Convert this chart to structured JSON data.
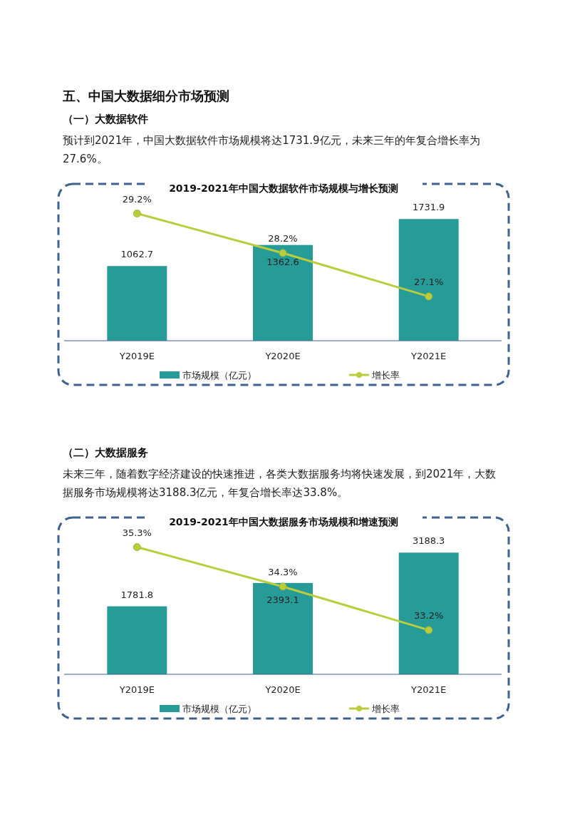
{
  "chart_data": [
    {
      "type": "bar",
      "title": "2019-2021年中国大数据软件市场规模与增长预测",
      "annotations": [
        "五、中国大数据细分市场预测",
        "（一）大数据软件",
        "预计到2021年，中国大数据软件市场规模将达1731.9亿元，未来三年的年复合增长率为27.6%。"
      ],
      "categories": [
        "Y2019E",
        "Y2020E",
        "Y2021E"
      ],
      "legend": "bottom",
      "series": [
        {
          "name": "市场规模（亿元）",
          "type": "bar",
          "color": "#279b98",
          "values": [
            1062.7,
            1362.6,
            1731.9
          ],
          "value_labels": [
            "1062.7",
            "1362.6",
            "1731.9"
          ]
        },
        {
          "name": "增长率",
          "type": "line",
          "axis": "y2",
          "marker": "circle",
          "color": "#b9cd3d",
          "values": [
            29.2,
            28.2,
            27.1
          ],
          "value_labels": [
            "29.2%",
            "28.2%",
            "27.1%"
          ]
        }
      ]
    },
    {
      "type": "bar",
      "title": "2019-2021年中国大数据服务市场规模和增速预测",
      "annotations": [
        "（二）大数据服务",
        "未来三年，随着数字经济建设的快速推进，各类大数据服务均将快速发展，到2021年，大数据服务市场规模将达3188.3亿元，年复合增长率达33.8%。"
      ],
      "categories": [
        "Y2019E",
        "Y2020E",
        "Y2021E"
      ],
      "legend": "bottom",
      "series": [
        {
          "name": "市场规模（亿元）",
          "type": "bar",
          "color": "#279b98",
          "values": [
            1781.8,
            2393.1,
            3188.3
          ],
          "value_labels": [
            "1781.8",
            "2393.1",
            "3188.3"
          ]
        },
        {
          "name": "增长率",
          "type": "line",
          "axis": "y2",
          "marker": "circle",
          "color": "#b9cd3d",
          "values": [
            35.3,
            34.3,
            33.2
          ],
          "value_labels": [
            "35.3%",
            "34.3%",
            "33.2%"
          ]
        }
      ]
    }
  ]
}
